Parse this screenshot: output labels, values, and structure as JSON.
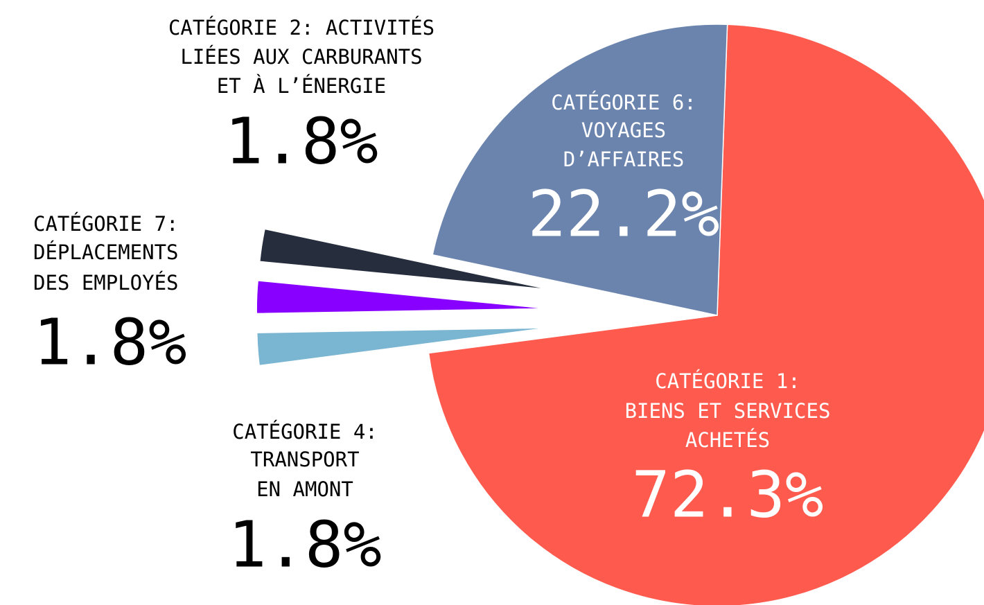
{
  "chart_data": {
    "type": "pie",
    "categories": [
      [
        "CATÉGORIE 1:",
        "BIENS ET SERVICES",
        "ACHETÉS"
      ],
      [
        "CATÉGORIE 4:",
        "TRANSPORT",
        "EN AMONT"
      ],
      [
        "CATÉGORIE 7:",
        "DÉPLACEMENTS",
        "DES EMPLOYÉS"
      ],
      [
        "CATÉGORIE 2: ACTIVITÉS",
        "LIÉES AUX CARBURANTS",
        "ET À L’ÉNERGIE"
      ],
      [
        "CATÉGORIE 6:",
        "VOYAGES",
        "D’AFFAIRES"
      ]
    ],
    "values": [
      72.3,
      1.8,
      1.8,
      1.8,
      22.2
    ],
    "value_labels": [
      "72.3%",
      "1.8%",
      "1.8%",
      "1.8%",
      "22.2%"
    ],
    "colors": [
      "#ff5a4e",
      "#7ab5d2",
      "#8800ff",
      "#262d3d",
      "#6b84ae"
    ]
  }
}
